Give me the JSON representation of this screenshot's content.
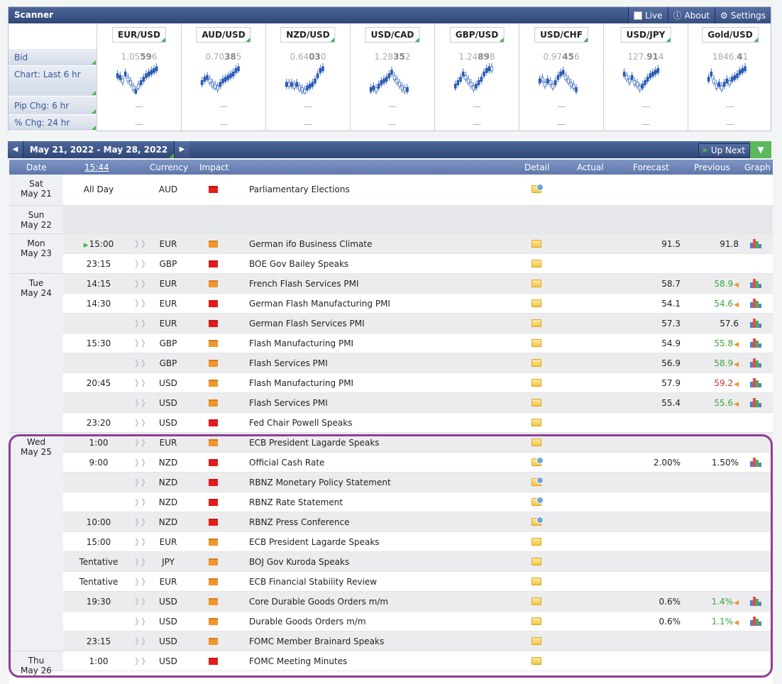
{
  "scanner": {
    "title": "Scanner",
    "live_label": "Live",
    "about_label": "About",
    "settings_label": "Settings",
    "row_labels": {
      "bid": "Bid",
      "chart": "Chart: Last 6 hr",
      "pip": "Pip Chg: 6 hr",
      "pct": "% Chg: 24 hr"
    },
    "pairs": [
      {
        "name": "EUR/USD",
        "bid_a": "1.05",
        "bid_b": "59",
        "bid_c": "6",
        "pip": "—",
        "pct": "—"
      },
      {
        "name": "AUD/USD",
        "bid_a": "0.70",
        "bid_b": "38",
        "bid_c": "5",
        "pip": "—",
        "pct": "—"
      },
      {
        "name": "NZD/USD",
        "bid_a": "0.64",
        "bid_b": "03",
        "bid_c": "0",
        "pip": "—",
        "pct": "—"
      },
      {
        "name": "USD/CAD",
        "bid_a": "1.28",
        "bid_b": "35",
        "bid_c": "2",
        "pip": "—",
        "pct": "—"
      },
      {
        "name": "GBP/USD",
        "bid_a": "1.24",
        "bid_b": "89",
        "bid_c": "8",
        "pip": "—",
        "pct": "—"
      },
      {
        "name": "USD/CHF",
        "bid_a": "0.97",
        "bid_b": "45",
        "bid_c": "6",
        "pip": "—",
        "pct": "—"
      },
      {
        "name": "USD/JPY",
        "bid_a": "127.",
        "bid_b": "91",
        "bid_c": "4",
        "pip": "—",
        "pct": "—"
      },
      {
        "name": "Gold/USD",
        "bid_a": "1846.",
        "bid_b": "4",
        "bid_c": "1",
        "pip": "—",
        "pct": "—"
      }
    ]
  },
  "calendar": {
    "prev_icon": "chevron-left-icon",
    "next_icon": "chevron-right-icon",
    "date_range": "May 21, 2022 - May 28, 2022",
    "up_next_label": "Up Next",
    "filter_icon": "filter-icon",
    "headers": {
      "date": "Date",
      "time": "15:44",
      "currency": "Currency",
      "impact": "Impact",
      "detail": "Detail",
      "actual": "Actual",
      "forecast": "Forecast",
      "previous": "Previous",
      "graph": "Graph"
    },
    "days": [
      {
        "dow": "Sat",
        "date": "May 21"
      },
      {
        "dow": "Sun",
        "date": "May 22"
      },
      {
        "dow": "Mon",
        "date": "May 23"
      },
      {
        "dow": "Tue",
        "date": "May 24"
      },
      {
        "dow": "Wed",
        "date": "May 25"
      },
      {
        "dow": "Thu",
        "date": "May 26"
      }
    ],
    "events": [
      {
        "time": "All Day",
        "currency": "AUD",
        "impact": "high",
        "event": "Parliamentary Elections",
        "forecast": "",
        "previous": "",
        "prev_trend": "",
        "detail_info": true,
        "graph": false
      },
      {
        "time": "",
        "currency": "",
        "impact": "",
        "event": "",
        "forecast": "",
        "previous": "",
        "prev_trend": "",
        "detail_info": false,
        "graph": false,
        "empty": true
      },
      {
        "time": "15:00",
        "next": true,
        "currency": "EUR",
        "impact": "med",
        "event": "German ifo Business Climate",
        "forecast": "91.5",
        "previous": "91.8",
        "prev_trend": "",
        "detail_info": false,
        "graph": true
      },
      {
        "time": "23:15",
        "currency": "GBP",
        "impact": "high",
        "event": "BOE Gov Bailey Speaks",
        "forecast": "",
        "previous": "",
        "prev_trend": "",
        "detail_info": false,
        "graph": false
      },
      {
        "time": "14:15",
        "currency": "EUR",
        "impact": "med",
        "event": "French Flash Services PMI",
        "forecast": "58.7",
        "previous": "58.9",
        "prev_trend": "up",
        "detail_info": false,
        "graph": true
      },
      {
        "time": "14:30",
        "currency": "EUR",
        "impact": "high",
        "event": "German Flash Manufacturing PMI",
        "forecast": "54.1",
        "previous": "54.6",
        "prev_trend": "up",
        "detail_info": false,
        "graph": true
      },
      {
        "time": "",
        "currency": "EUR",
        "impact": "high",
        "event": "German Flash Services PMI",
        "forecast": "57.3",
        "previous": "57.6",
        "prev_trend": "",
        "detail_info": false,
        "graph": true
      },
      {
        "time": "15:30",
        "currency": "GBP",
        "impact": "med",
        "event": "Flash Manufacturing PMI",
        "forecast": "54.9",
        "previous": "55.8",
        "prev_trend": "up",
        "detail_info": false,
        "graph": true
      },
      {
        "time": "",
        "currency": "GBP",
        "impact": "med",
        "event": "Flash Services PMI",
        "forecast": "56.9",
        "previous": "58.9",
        "prev_trend": "up",
        "detail_info": false,
        "graph": true
      },
      {
        "time": "20:45",
        "currency": "USD",
        "impact": "med",
        "event": "Flash Manufacturing PMI",
        "forecast": "57.9",
        "previous": "59.2",
        "prev_trend": "down",
        "detail_info": false,
        "graph": true
      },
      {
        "time": "",
        "currency": "USD",
        "impact": "med",
        "event": "Flash Services PMI",
        "forecast": "55.4",
        "previous": "55.6",
        "prev_trend": "up",
        "detail_info": false,
        "graph": true
      },
      {
        "time": "23:20",
        "currency": "USD",
        "impact": "high",
        "event": "Fed Chair Powell Speaks",
        "forecast": "",
        "previous": "",
        "prev_trend": "",
        "detail_info": false,
        "graph": false
      },
      {
        "time": "1:00",
        "currency": "EUR",
        "impact": "med",
        "event": "ECB President Lagarde Speaks",
        "forecast": "",
        "previous": "",
        "prev_trend": "",
        "detail_info": false,
        "graph": false
      },
      {
        "time": "9:00",
        "currency": "NZD",
        "impact": "high",
        "event": "Official Cash Rate",
        "forecast": "2.00%",
        "previous": "1.50%",
        "prev_trend": "",
        "detail_info": true,
        "graph": true
      },
      {
        "time": "",
        "currency": "NZD",
        "impact": "high",
        "event": "RBNZ Monetary Policy Statement",
        "forecast": "",
        "previous": "",
        "prev_trend": "",
        "detail_info": true,
        "graph": false
      },
      {
        "time": "",
        "currency": "NZD",
        "impact": "high",
        "event": "RBNZ Rate Statement",
        "forecast": "",
        "previous": "",
        "prev_trend": "",
        "detail_info": true,
        "graph": false
      },
      {
        "time": "10:00",
        "currency": "NZD",
        "impact": "high",
        "event": "RBNZ Press Conference",
        "forecast": "",
        "previous": "",
        "prev_trend": "",
        "detail_info": true,
        "graph": false
      },
      {
        "time": "15:00",
        "currency": "EUR",
        "impact": "med",
        "event": "ECB President Lagarde Speaks",
        "forecast": "",
        "previous": "",
        "prev_trend": "",
        "detail_info": false,
        "graph": false
      },
      {
        "time": "Tentative",
        "currency": "JPY",
        "impact": "med",
        "event": "BOJ Gov Kuroda Speaks",
        "forecast": "",
        "previous": "",
        "prev_trend": "",
        "detail_info": false,
        "graph": false
      },
      {
        "time": "Tentative",
        "currency": "EUR",
        "impact": "med",
        "event": "ECB Financial Stability Review",
        "forecast": "",
        "previous": "",
        "prev_trend": "",
        "detail_info": false,
        "graph": false
      },
      {
        "time": "19:30",
        "currency": "USD",
        "impact": "med",
        "event": "Core Durable Goods Orders m/m",
        "forecast": "0.6%",
        "previous": "1.4%",
        "prev_trend": "up",
        "detail_info": false,
        "graph": true
      },
      {
        "time": "",
        "currency": "USD",
        "impact": "med",
        "event": "Durable Goods Orders m/m",
        "forecast": "0.6%",
        "previous": "1.1%",
        "prev_trend": "up",
        "detail_info": false,
        "graph": true
      },
      {
        "time": "23:15",
        "currency": "USD",
        "impact": "med",
        "event": "FOMC Member Brainard Speaks",
        "forecast": "",
        "previous": "",
        "prev_trend": "",
        "detail_info": false,
        "graph": false
      },
      {
        "time": "1:00",
        "currency": "USD",
        "impact": "high",
        "event": "FOMC Meeting Minutes",
        "forecast": "",
        "previous": "",
        "prev_trend": "",
        "detail_info": false,
        "graph": false
      }
    ]
  },
  "colors": {
    "header_blue": "#3a5288",
    "accent_green": "#4caf50",
    "impact_high": "#e51b1b",
    "impact_med": "#f2952b",
    "prev_up": "#3aa63a",
    "prev_down": "#d9322a",
    "highlight_border": "#8e3f96"
  }
}
